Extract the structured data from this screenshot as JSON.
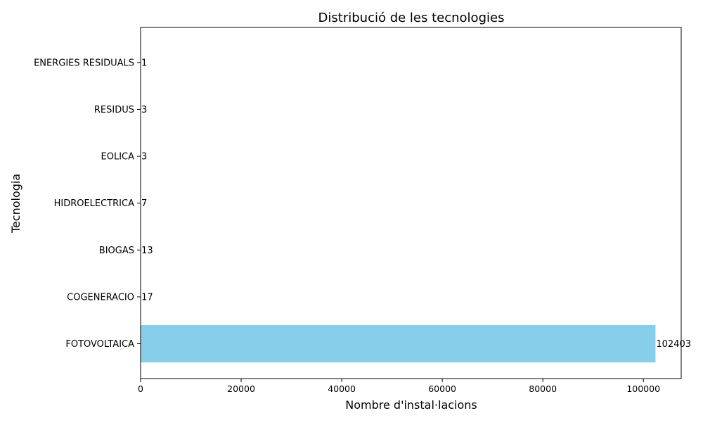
{
  "chart_data": {
    "type": "bar",
    "orientation": "horizontal",
    "title": "Distribució de les tecnologies",
    "xlabel": "Nombre d'instal·lacions",
    "ylabel": "Tecnologia",
    "categories": [
      "FOTOVOLTAICA",
      "COGENERACIO",
      "BIOGAS",
      "HIDROELECTRICA",
      "EOLICA",
      "RESIDUS",
      "ENERGIES RESIDUALS"
    ],
    "values": [
      102403,
      17,
      13,
      7,
      3,
      3,
      1
    ],
    "data_labels": [
      "102403",
      "17",
      "13",
      "7",
      "3",
      "3",
      "1"
    ],
    "xlim": [
      0,
      107523
    ],
    "xticks": [
      0,
      20000,
      40000,
      60000,
      80000,
      100000
    ],
    "xtick_labels": [
      "0",
      "20000",
      "40000",
      "60000",
      "80000",
      "100000"
    ],
    "bar_color": "#87CEEB",
    "grid": false,
    "legend": "none"
  }
}
